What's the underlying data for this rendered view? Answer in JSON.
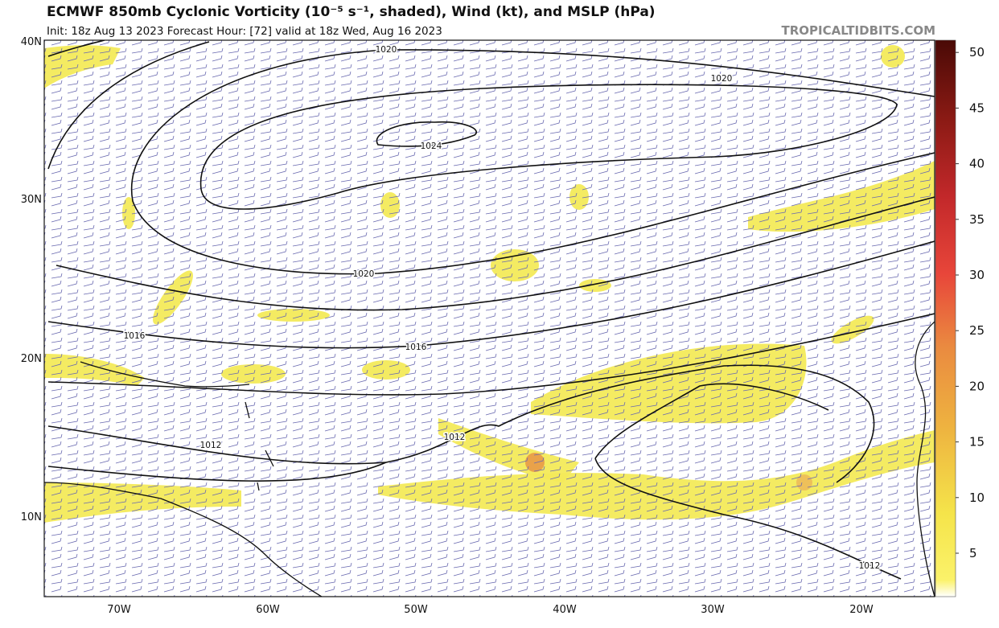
{
  "header": {
    "title": "ECMWF 850mb Cyclonic Vorticity (10⁻⁵ s⁻¹, shaded), Wind (kt), and MSLP (hPa)",
    "subtitle": "Init: 18z Aug 13 2023   Forecast Hour: [72]   valid at 18z Wed, Aug 16 2023",
    "site": "TROPICALTIDBITS.COM"
  },
  "map": {
    "lat_labels": [
      "40N",
      "30N",
      "20N",
      "10N"
    ],
    "lon_labels": [
      "70W",
      "60W",
      "50W",
      "40W",
      "30W",
      "20W"
    ],
    "isobar_labels": [
      "1020",
      "1024",
      "1020",
      "1020",
      "1016",
      "1016",
      "1012",
      "1012",
      "1012"
    ]
  },
  "colorbar": {
    "ticks": [
      5,
      10,
      15,
      20,
      25,
      30,
      35,
      40,
      45,
      50
    ]
  }
}
